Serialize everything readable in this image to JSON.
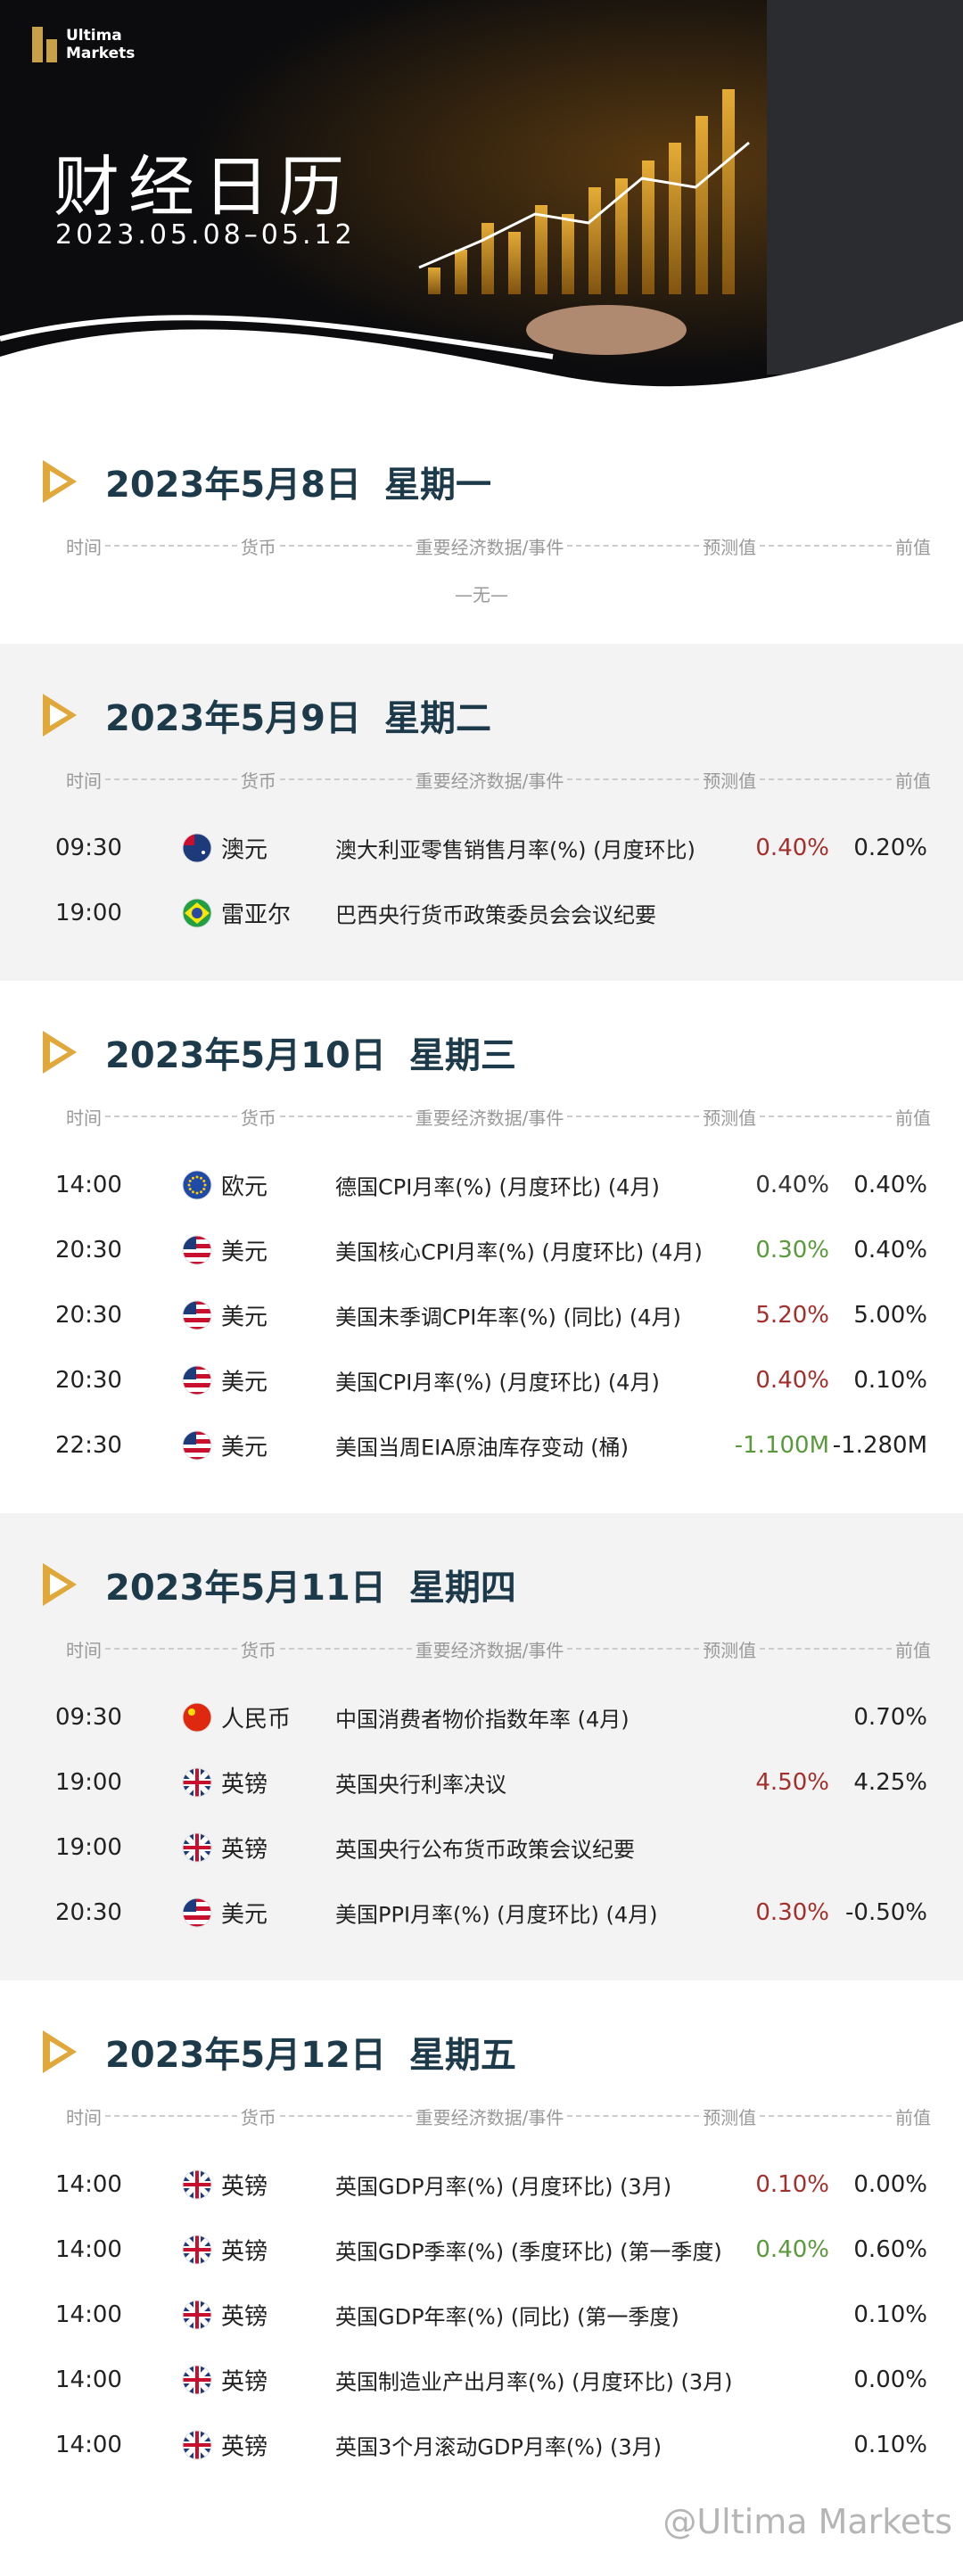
{
  "header": {
    "logo": "Ultima Markets",
    "title": "财经日历",
    "date_range": "2023.05.08–05.12"
  },
  "columns": [
    "时间",
    "货币",
    "重要经济数据/事件",
    "预测值",
    "前值"
  ],
  "days": [
    {
      "date": "2023年5月8日",
      "weekday": "星期一",
      "shaded": false,
      "empty_note": "—无—",
      "rows": []
    },
    {
      "date": "2023年5月9日",
      "weekday": "星期二",
      "shaded": true,
      "rows": [
        {
          "time": "09:30",
          "flag": "au",
          "currency": "澳元",
          "event": "澳大利亚零售销售月率(%) (月度环比)",
          "forecast": "0.40%",
          "forecast_color": "#a3302c",
          "previous": "0.20%"
        },
        {
          "time": "19:00",
          "flag": "br",
          "currency": "雷亚尔",
          "event": "巴西央行货币政策委员会会议纪要"
        }
      ]
    },
    {
      "date": "2023年5月10日",
      "weekday": "星期三",
      "shaded": false,
      "rows": [
        {
          "time": "14:00",
          "flag": "eu",
          "currency": "欧元",
          "event": "德国CPI月率(%) (月度环比) (4月)",
          "forecast": "0.40%",
          "forecast_color": "#333333",
          "previous": "0.40%"
        },
        {
          "time": "20:30",
          "flag": "us",
          "currency": "美元",
          "event": "美国核心CPI月率(%) (月度环比) (4月)",
          "forecast": "0.30%",
          "forecast_color": "#5a9a3c",
          "previous": "0.40%"
        },
        {
          "time": "20:30",
          "flag": "us",
          "currency": "美元",
          "event": "美国未季调CPI年率(%) (同比) (4月)",
          "forecast": "5.20%",
          "forecast_color": "#a3302c",
          "previous": "5.00%"
        },
        {
          "time": "20:30",
          "flag": "us",
          "currency": "美元",
          "event": "美国CPI月率(%) (月度环比) (4月)",
          "forecast": "0.40%",
          "forecast_color": "#a3302c",
          "previous": "0.10%"
        },
        {
          "time": "22:30",
          "flag": "us",
          "currency": "美元",
          "event": "美国当周EIA原油库存变动 (桶)",
          "forecast": "-1.100M",
          "forecast_color": "#5a9a3c",
          "previous": "-1.280M"
        }
      ]
    },
    {
      "date": "2023年5月11日",
      "weekday": "星期四",
      "shaded": true,
      "rows": [
        {
          "time": "09:30",
          "flag": "cn",
          "currency": "人民币",
          "event": "中国消费者物价指数年率 (4月)",
          "previous": "0.70%"
        },
        {
          "time": "19:00",
          "flag": "gb",
          "currency": "英镑",
          "event": "英国央行利率决议",
          "forecast": "4.50%",
          "forecast_color": "#a3302c",
          "previous": "4.25%"
        },
        {
          "time": "19:00",
          "flag": "gb",
          "currency": "英镑",
          "event": "英国央行公布货币政策会议纪要"
        },
        {
          "time": "20:30",
          "flag": "us",
          "currency": "美元",
          "event": "美国PPI月率(%) (月度环比) (4月)",
          "forecast": "0.30%",
          "forecast_color": "#a3302c",
          "previous": "-0.50%"
        }
      ]
    },
    {
      "date": "2023年5月12日",
      "weekday": "星期五",
      "shaded": false,
      "rows": [
        {
          "time": "14:00",
          "flag": "gb",
          "currency": "英镑",
          "event": "英国GDP月率(%) (月度环比) (3月)",
          "forecast": "0.10%",
          "forecast_color": "#a3302c",
          "previous": "0.00%"
        },
        {
          "time": "14:00",
          "flag": "gb",
          "currency": "英镑",
          "event": "英国GDP季率(%) (季度环比) (第一季度)",
          "forecast": "0.40%",
          "forecast_color": "#5a9a3c",
          "previous": "0.60%"
        },
        {
          "time": "14:00",
          "flag": "gb",
          "currency": "英镑",
          "event": "英国GDP年率(%) (同比) (第一季度)",
          "previous": "0.10%"
        },
        {
          "time": "14:00",
          "flag": "gb",
          "currency": "英镑",
          "event": "英国制造业产出月率(%) (月度环比) (3月)",
          "previous": "0.00%"
        },
        {
          "time": "14:00",
          "flag": "gb",
          "currency": "英镑",
          "event": "英国3个月滚动GDP月率(%) (3月)",
          "previous": "0.10%"
        }
      ]
    }
  ],
  "watermark": "@Ultima Markets"
}
